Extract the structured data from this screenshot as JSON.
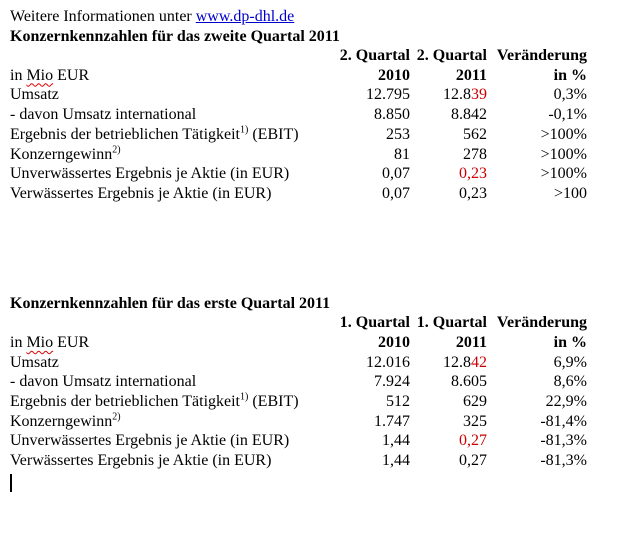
{
  "colors": {
    "link_blue": "#0000cc",
    "accent_red": "#cc0000",
    "text_black": "#000000"
  },
  "intro": {
    "text": "Weitere Informationen unter ",
    "link": "www.dp-dhl.de"
  },
  "sections": [
    {
      "title": "Konzernkennzahlen für das zweite Quartal 2011",
      "col_headers": {
        "q1": "2. Quartal",
        "q2": "2. Quartal",
        "change": "Veränderung"
      },
      "unit_row": {
        "pre": "in ",
        "word": "Mio",
        "post": " EUR",
        "y2010": "2010",
        "y2011": "2011",
        "pct": "in %"
      },
      "rows": [
        {
          "label": "Umsatz",
          "sup": "",
          "suffix": "",
          "v2010": "12.795",
          "v2011": "12.8",
          "v2011_red": "39",
          "change": "0,3%"
        },
        {
          "label": "- davon Umsatz international",
          "sup": "",
          "suffix": "",
          "v2010": "8.850",
          "v2011": "8.842",
          "v2011_red": "",
          "change": "-0,1%"
        },
        {
          "label": "Ergebnis der betrieblichen Tätigkeit",
          "sup": "1)",
          "suffix": " (EBIT)",
          "v2010": "253",
          "v2011": "562",
          "v2011_red": "",
          "change": ">100%"
        },
        {
          "label": "Konzerngewinn",
          "sup": "2)",
          "suffix": "",
          "v2010": "81",
          "v2011": "278",
          "v2011_red": "",
          "change": ">100%"
        },
        {
          "label": "Unverwässertes Ergebnis je Aktie (in EUR)",
          "sup": "",
          "suffix": "",
          "v2010": "0,07",
          "v2011": "",
          "v2011_red": "0,23",
          "change": ">100%"
        },
        {
          "label": "Verwässertes Ergebnis je Aktie (in EUR)",
          "sup": "",
          "suffix": "",
          "v2010": "0,07",
          "v2011": "0,23",
          "v2011_red": "",
          "change": ">100"
        }
      ]
    },
    {
      "title": "Konzernkennzahlen für das erste Quartal 2011",
      "col_headers": {
        "q1": "1. Quartal",
        "q2": "1. Quartal",
        "change": "Veränderung"
      },
      "unit_row": {
        "pre": "in ",
        "word": "Mio",
        "post": " EUR",
        "y2010": "2010",
        "y2011": "2011",
        "pct": "in %"
      },
      "rows": [
        {
          "label": "Umsatz",
          "sup": "",
          "suffix": "",
          "v2010": "12.016",
          "v2011": "12.8",
          "v2011_red": "42",
          "change": "6,9%"
        },
        {
          "label": "- davon Umsatz international",
          "sup": "",
          "suffix": "",
          "v2010": "7.924",
          "v2011": "8.605",
          "v2011_red": "",
          "change": "8,6%"
        },
        {
          "label": "Ergebnis der betrieblichen Tätigkeit",
          "sup": "1)",
          "suffix": " (EBIT)",
          "v2010": "512",
          "v2011": "629",
          "v2011_red": "",
          "change": "22,9%"
        },
        {
          "label": "Konzerngewinn",
          "sup": "2)",
          "suffix": "",
          "v2010": "1.747",
          "v2011": "325",
          "v2011_red": "",
          "change": "-81,4%"
        },
        {
          "label": "Unverwässertes Ergebnis je Aktie (in EUR)",
          "sup": "",
          "suffix": "",
          "v2010": "1,44",
          "v2011": "",
          "v2011_red": "0,27",
          "change": "-81,3%"
        },
        {
          "label": "Verwässertes Ergebnis je Aktie (in EUR)",
          "sup": "",
          "suffix": "",
          "v2010": "1,44",
          "v2011": "0,27",
          "v2011_red": "",
          "change": "-81,3%"
        }
      ]
    }
  ]
}
